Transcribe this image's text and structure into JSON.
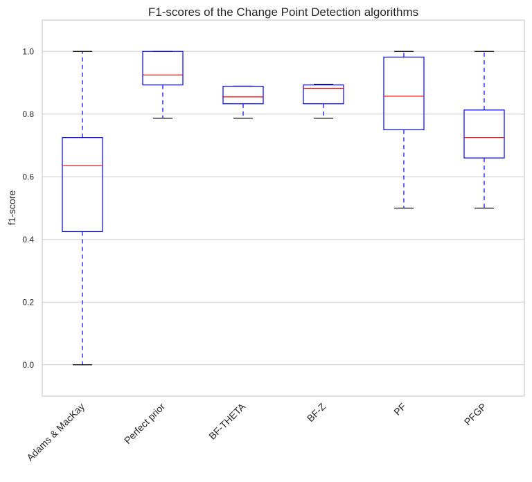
{
  "chart_data": {
    "type": "box",
    "title": "F1-scores of the Change Point Detection algorithms",
    "xlabel": "",
    "ylabel": "f1-score",
    "ylim": [
      -0.1,
      1.1
    ],
    "yticks": [
      "0.0",
      "0.2",
      "0.4",
      "0.6",
      "0.8",
      "1.0"
    ],
    "grid": "horizontal",
    "colors": {
      "box": "#0000ff",
      "median": "#ff0000",
      "cap": "#000000",
      "grid": "#cccccc",
      "frame": "#cccccc"
    },
    "categories": [
      "Adams & MacKay",
      "Perfect prior",
      "BF-THETA",
      "BF-Z",
      "PF",
      "PFGP"
    ],
    "boxes": [
      {
        "min": 0.0,
        "q1": 0.425,
        "median": 0.635,
        "q3": 0.725,
        "max": 1.0
      },
      {
        "min": 0.787,
        "q1": 0.893,
        "median": 0.925,
        "q3": 1.0,
        "max": 1.0
      },
      {
        "min": 0.787,
        "q1": 0.833,
        "median": 0.855,
        "q3": 0.889,
        "max": 0.889
      },
      {
        "min": 0.787,
        "q1": 0.833,
        "median": 0.882,
        "q3": 0.893,
        "max": 0.895
      },
      {
        "min": 0.5,
        "q1": 0.75,
        "median": 0.857,
        "q3": 0.982,
        "max": 1.0
      },
      {
        "min": 0.5,
        "q1": 0.66,
        "median": 0.725,
        "q3": 0.813,
        "max": 1.0
      }
    ]
  }
}
